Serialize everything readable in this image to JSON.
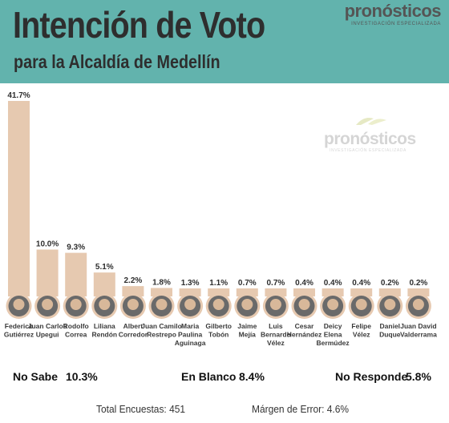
{
  "header": {
    "title": "Intención de Voto",
    "subtitle": "para la Alcaldía de Medellín",
    "brand": "pronósticos",
    "brand_tag": "INVESTIGACIÓN ESPECIALIZADA",
    "bg_color": "#62b3ad"
  },
  "watermark": {
    "name": "pronósticos",
    "tag": "INVESTIGACIÓN ESPECIALIZADA"
  },
  "chart_data": {
    "type": "bar",
    "title": "Intención de Voto",
    "subtitle": "para la Alcaldía de Medellín",
    "xlabel": "",
    "ylabel": "",
    "ylim": [
      0,
      41.7
    ],
    "grid": false,
    "bar_color": "#e6c9b0",
    "categories": [
      [
        "Federico",
        "Gutiérrez"
      ],
      [
        "Juan Carlos",
        "Upegui"
      ],
      [
        "Rodolfo",
        "Correa"
      ],
      [
        "Liliana",
        "Rendón"
      ],
      [
        "Albert",
        "Corredor"
      ],
      [
        "Juan Camilo",
        "Restrepo"
      ],
      [
        "Maria",
        "Paulina",
        "Aguinaga"
      ],
      [
        "Gilberto",
        "Tobón"
      ],
      [
        "Jaime",
        "Mejía"
      ],
      [
        "Luis",
        "Bernardo",
        "Vélez"
      ],
      [
        "Cesar",
        "Hernández"
      ],
      [
        "Deicy",
        "Elena",
        "Bermúdez"
      ],
      [
        "Felipe",
        "Vélez"
      ],
      [
        "Daniel",
        "Duque"
      ],
      [
        "Juan David",
        "Valderrama"
      ]
    ],
    "values": [
      41.7,
      10.0,
      9.3,
      5.1,
      2.2,
      1.8,
      1.3,
      1.1,
      0.7,
      0.7,
      0.4,
      0.4,
      0.4,
      0.2,
      0.2
    ],
    "value_labels": [
      "41.7%",
      "10.0%",
      "9.3%",
      "5.1%",
      "2.2%",
      "1.8%",
      "1.3%",
      "1.1%",
      "0.7%",
      "0.7%",
      "0.4%",
      "0.4%",
      "0.4%",
      "0.2%",
      "0.2%"
    ]
  },
  "summary": {
    "no_sabe_label": "No Sabe",
    "no_sabe_value": "10.3%",
    "en_blanco_label": "En Blanco",
    "en_blanco_value": "8.4%",
    "no_responde_label": "No Responde",
    "no_responde_value": "5.8%"
  },
  "footer": {
    "total": "Total Encuestas: 451",
    "margin": "Márgen de Error: 4.6%"
  }
}
